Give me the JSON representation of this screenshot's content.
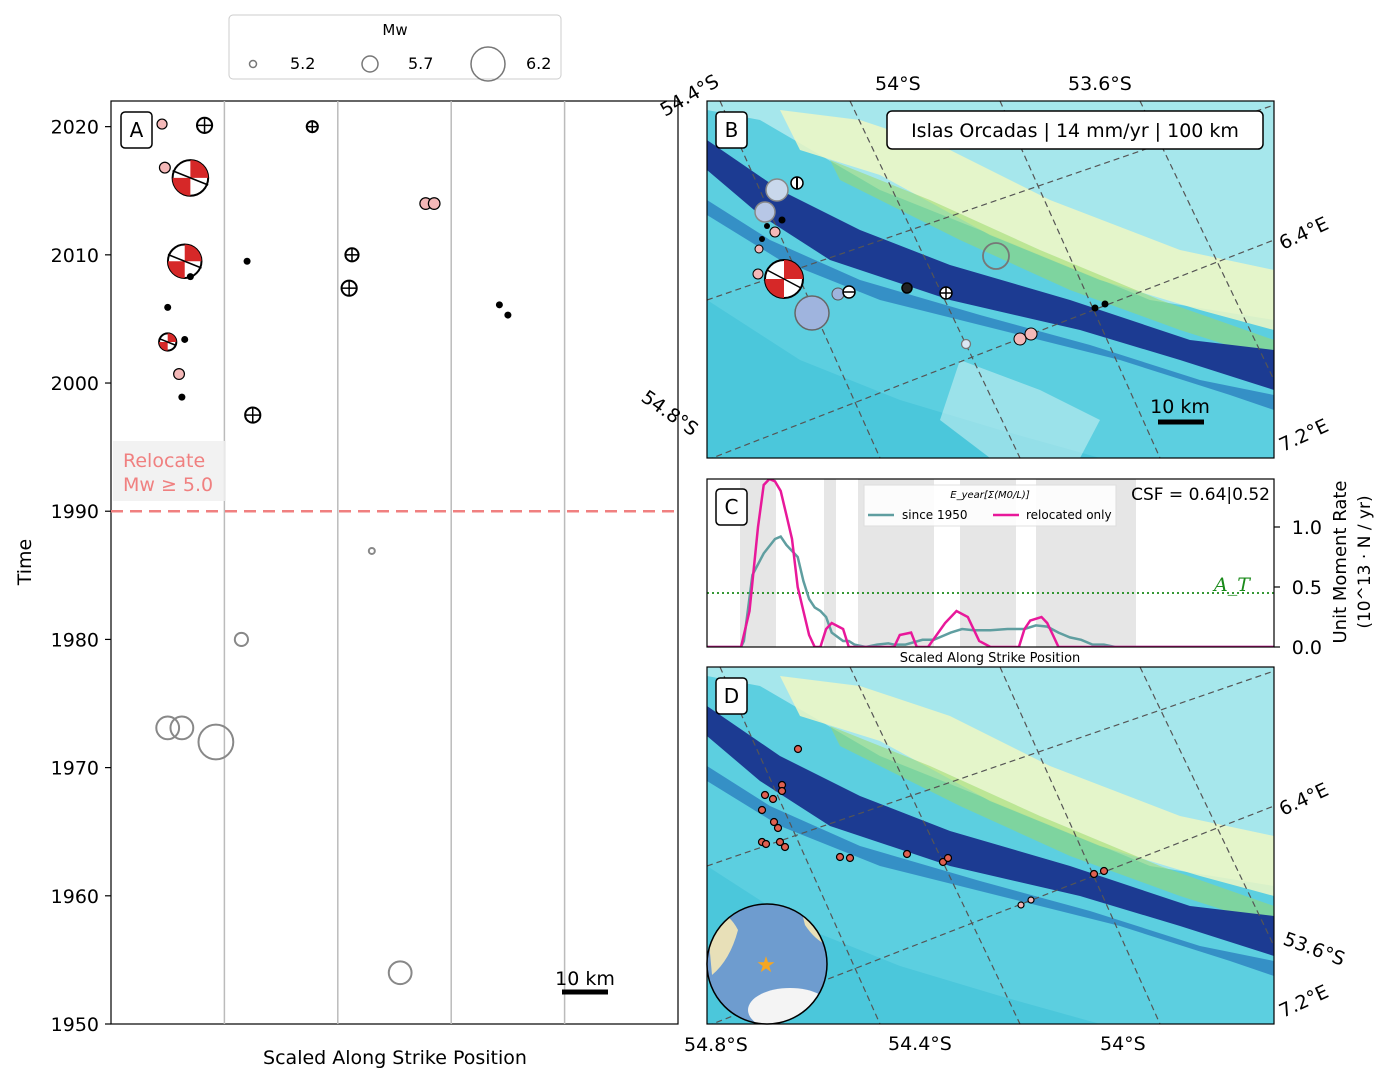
{
  "legend": {
    "title": "Mw",
    "entries": [
      {
        "label": "5.2",
        "mw": 5.2
      },
      {
        "label": "5.7",
        "mw": 5.7
      },
      {
        "label": "6.2",
        "mw": 6.2
      }
    ]
  },
  "panels": {
    "a": "A",
    "b": "B",
    "c": "C",
    "d": "D"
  },
  "panel_a": {
    "ylabel": "Time",
    "xlabel": "Scaled Along Strike Position",
    "yticks": [
      "1950",
      "1960",
      "1970",
      "1980",
      "1990",
      "2000",
      "2010",
      "2020"
    ],
    "relocate_line1": "Relocate",
    "relocate_line2": "Mw ≥ 5.0",
    "relocate_year": 1990,
    "scalebar": "10 km"
  },
  "panel_b": {
    "title": "Islas Orcadas | 14 mm/yr | 100 km",
    "lat_labels": [
      "54.4°S",
      "54°S",
      "53.6°S",
      "54.8°S"
    ],
    "lon_labels": [
      "6.4°E",
      "7.2°E"
    ],
    "scalebar": "10 km"
  },
  "panel_c": {
    "legend_title": "E_year[Σ(M0/L)]",
    "csf": "CSF = 0.64|0.52",
    "ylabel_line1": "Unit Moment Rate",
    "ylabel_line2": "(10^13 · N / yr)",
    "xlabel": "Scaled Along Strike Position",
    "yticks": [
      "0.0",
      "0.5",
      "1.0"
    ],
    "at_label": "A_T",
    "at_value": 0.45
  },
  "panel_d": {
    "lat_labels": [
      "54.8°S",
      "54.4°S",
      "54°S",
      "53.6°S"
    ],
    "lon_labels": [
      "6.4°E",
      "7.2°E"
    ]
  },
  "colors": {
    "relocate": "#f08080",
    "since1950": "#5f9ea0",
    "relocated_only": "#e8189a",
    "at_line": "#1a8a1a",
    "focal_fill": "#d62828",
    "pink_event": "#f4b8b8"
  },
  "chart_data": [
    {
      "type": "scatter",
      "panel": "A",
      "xlabel": "Scaled Along Strike Position",
      "ylabel": "Time",
      "ylim": [
        1950,
        2022
      ],
      "xlim": [
        0,
        1
      ],
      "series": [
        {
          "name": "focal_mechanism",
          "points": [
            {
              "x": 0.14,
              "y": 2016.0,
              "mw": 6.2
            },
            {
              "x": 0.13,
              "y": 2009.5,
              "mw": 6.1
            },
            {
              "x": 0.1,
              "y": 2003.2,
              "mw": 5.3
            },
            {
              "x": 0.25,
              "y": 1997.5,
              "mw": 5.2
            },
            {
              "x": 0.165,
              "y": 2020.1,
              "mw": 5.2
            },
            {
              "x": 0.355,
              "y": 2020.0,
              "mw": 5.0
            },
            {
              "x": 0.425,
              "y": 2010.0,
              "mw": 5.1
            },
            {
              "x": 0.42,
              "y": 2007.4,
              "mw": 5.2
            }
          ]
        },
        {
          "name": "relocated",
          "points": [
            {
              "x": 0.09,
              "y": 2020.2,
              "mw": 5.0
            },
            {
              "x": 0.095,
              "y": 2016.8,
              "mw": 5.1
            },
            {
              "x": 0.12,
              "y": 2000.7,
              "mw": 5.1
            },
            {
              "x": 0.555,
              "y": 2014.0,
              "mw": 5.2
            },
            {
              "x": 0.57,
              "y": 2014.0,
              "mw": 5.2
            }
          ]
        },
        {
          "name": "small",
          "points": [
            {
              "x": 0.24,
              "y": 2009.5
            },
            {
              "x": 0.1,
              "y": 2005.9
            },
            {
              "x": 0.13,
              "y": 2003.4
            },
            {
              "x": 0.14,
              "y": 2008.3
            },
            {
              "x": 0.125,
              "y": 1998.9
            },
            {
              "x": 0.685,
              "y": 2006.1
            },
            {
              "x": 0.7,
              "y": 2005.3
            }
          ]
        },
        {
          "name": "catalog",
          "points": [
            {
              "x": 0.46,
              "y": 1986.9,
              "mw": 5.0
            },
            {
              "x": 0.23,
              "y": 1980.0,
              "mw": 5.3
            },
            {
              "x": 0.1,
              "y": 1973.1,
              "mw": 5.7
            },
            {
              "x": 0.125,
              "y": 1973.1,
              "mw": 5.7
            },
            {
              "x": 0.185,
              "y": 1972.0,
              "mw": 6.2
            },
            {
              "x": 0.51,
              "y": 1954.0,
              "mw": 5.7
            }
          ]
        }
      ]
    },
    {
      "type": "line",
      "panel": "C",
      "xlabel": "Scaled Along Strike Position",
      "ylabel": "Unit Moment Rate (10^13 · N / yr)",
      "xlim": [
        0,
        1
      ],
      "ylim": [
        0,
        1.4
      ],
      "series": [
        {
          "name": "since 1950",
          "x": [
            0.0,
            0.06,
            0.065,
            0.08,
            0.1,
            0.12,
            0.13,
            0.14,
            0.16,
            0.17,
            0.18,
            0.19,
            0.2,
            0.21,
            0.22,
            0.24,
            0.25,
            0.26,
            0.28,
            0.3,
            0.32,
            0.33,
            0.35,
            0.38,
            0.4,
            0.43,
            0.45,
            0.47,
            0.5,
            0.53,
            0.56,
            0.58,
            0.6,
            0.62,
            0.64,
            0.66,
            0.68,
            0.7,
            0.72,
            1.0
          ],
          "y": [
            0,
            0,
            0.05,
            0.6,
            0.78,
            0.9,
            0.92,
            0.85,
            0.75,
            0.55,
            0.4,
            0.33,
            0.3,
            0.25,
            0.12,
            0.05,
            0.05,
            0.02,
            0.0,
            0.02,
            0.03,
            0.02,
            0.02,
            0.06,
            0.06,
            0.12,
            0.15,
            0.14,
            0.14,
            0.15,
            0.15,
            0.18,
            0.17,
            0.12,
            0.08,
            0.06,
            0.02,
            0.02,
            0.0,
            0.0
          ]
        },
        {
          "name": "relocated only",
          "x": [
            0.0,
            0.06,
            0.075,
            0.09,
            0.1,
            0.11,
            0.12,
            0.13,
            0.14,
            0.15,
            0.16,
            0.17,
            0.18,
            0.19,
            0.2,
            0.21,
            0.22,
            0.24,
            0.25,
            0.26,
            0.28,
            0.3,
            0.33,
            0.34,
            0.36,
            0.37,
            0.39,
            0.42,
            0.44,
            0.46,
            0.48,
            0.5,
            0.52,
            0.55,
            0.56,
            0.57,
            0.59,
            0.6,
            0.61,
            0.62,
            0.64,
            0.65,
            0.66,
            1.0
          ],
          "y": [
            0,
            0,
            0.3,
            1.0,
            1.35,
            1.4,
            1.38,
            1.3,
            1.1,
            0.9,
            0.5,
            0.3,
            0.1,
            0.0,
            0.0,
            0.15,
            0.2,
            0.15,
            0.0,
            0.0,
            0.0,
            0.0,
            0.0,
            0.1,
            0.12,
            0.0,
            0.0,
            0.2,
            0.3,
            0.25,
            0.05,
            0.0,
            0.0,
            0.0,
            0.15,
            0.22,
            0.25,
            0.2,
            0.1,
            0.0,
            0.0,
            0.0,
            0.0,
            0.0
          ]
        }
      ]
    }
  ]
}
